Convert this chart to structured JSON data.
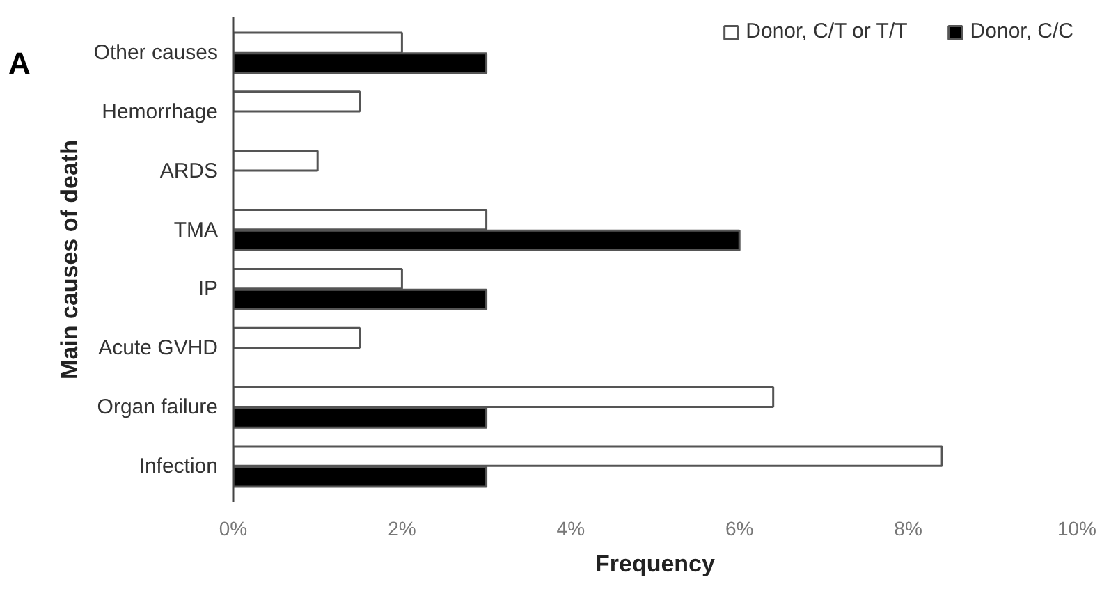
{
  "chart_data": {
    "type": "bar",
    "orientation": "horizontal",
    "xlabel": "Frequency",
    "ylabel": "Main causes of death",
    "annotations": [
      "A"
    ],
    "categories": [
      "Other causes",
      "Hemorrhage",
      "ARDS",
      "TMA",
      "IP",
      "Acute GVHD",
      "Organ failure",
      "Infection"
    ],
    "series": [
      {
        "name": "Donor, C/T or T/T",
        "color": "#ffffff",
        "values": [
          2.0,
          1.5,
          1.0,
          3.0,
          2.0,
          1.5,
          6.4,
          8.4
        ]
      },
      {
        "name": "Donor, C/C",
        "color": "#000000",
        "values": [
          3.0,
          null,
          null,
          6.0,
          3.0,
          null,
          3.0,
          3.0
        ]
      }
    ],
    "xlim": [
      0,
      10
    ],
    "xticks": [
      {
        "value": 0,
        "label": "0%"
      },
      {
        "value": 2,
        "label": "2%"
      },
      {
        "value": 4,
        "label": "4%"
      },
      {
        "value": 6,
        "label": "6%"
      },
      {
        "value": 8,
        "label": "8%"
      },
      {
        "value": 10,
        "label": "10%"
      }
    ],
    "grid": false,
    "legend": "top right"
  }
}
